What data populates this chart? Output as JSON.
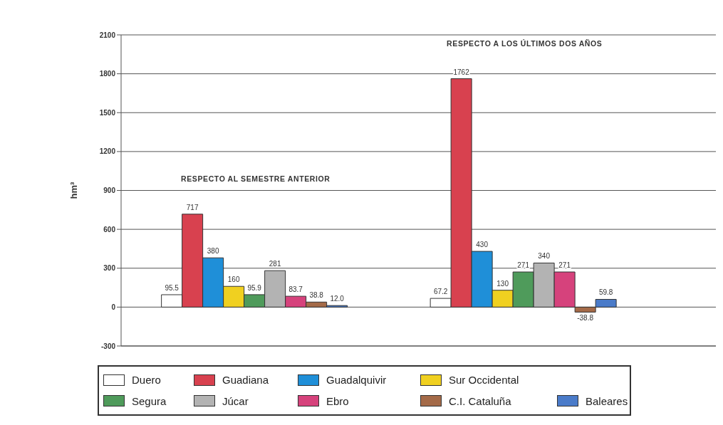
{
  "chart_data": {
    "type": "bar",
    "ylabel": "hm³",
    "categories": [
      null,
      null
    ],
    "series": [
      {
        "name": "Duero",
        "color": "#ffffff",
        "values": [
          95.5,
          67.2
        ],
        "value_labels": [
          "95.5",
          "67.2"
        ]
      },
      {
        "name": "Guadiana",
        "color": "#d8414f",
        "values": [
          717,
          1762
        ],
        "value_labels": [
          "717",
          "1762"
        ]
      },
      {
        "name": "Guadalquivir",
        "color": "#1f8fd8",
        "values": [
          380,
          430
        ],
        "value_labels": [
          "380",
          "430"
        ]
      },
      {
        "name": "Sur Occidental",
        "color": "#f0d020",
        "values": [
          160,
          130
        ],
        "value_labels": [
          "160",
          "130"
        ]
      },
      {
        "name": "Segura",
        "color": "#4f9b5b",
        "values": [
          95.9,
          271
        ],
        "value_labels": [
          "95.9",
          "271"
        ]
      },
      {
        "name": "Júcar",
        "color": "#b3b3b3",
        "values": [
          281,
          340
        ],
        "value_labels": [
          "281",
          "340"
        ]
      },
      {
        "name": "Ebro",
        "color": "#d6427c",
        "values": [
          83.7,
          271
        ],
        "value_labels": [
          "83.7",
          "271"
        ]
      },
      {
        "name": "C.I. Cataluña",
        "color": "#a46a48",
        "values": [
          38.8,
          -38.8
        ],
        "value_labels": [
          "38.8",
          "-38.8"
        ]
      },
      {
        "name": "Baleares",
        "color": "#4a7bc9",
        "values": [
          12.0,
          59.8
        ],
        "value_labels": [
          "12.0",
          "59.8"
        ]
      }
    ],
    "ylim": [
      -300,
      2100
    ],
    "yticks": [
      -300,
      0,
      300,
      600,
      900,
      1200,
      1500,
      1800,
      2100
    ],
    "grid": "y",
    "legend": "bottom",
    "annotations": [
      "RESPECTO AL SEMESTRE ANTERIOR",
      "RESPECTO A LOS ÚLTIMOS DOS AÑOS"
    ]
  }
}
